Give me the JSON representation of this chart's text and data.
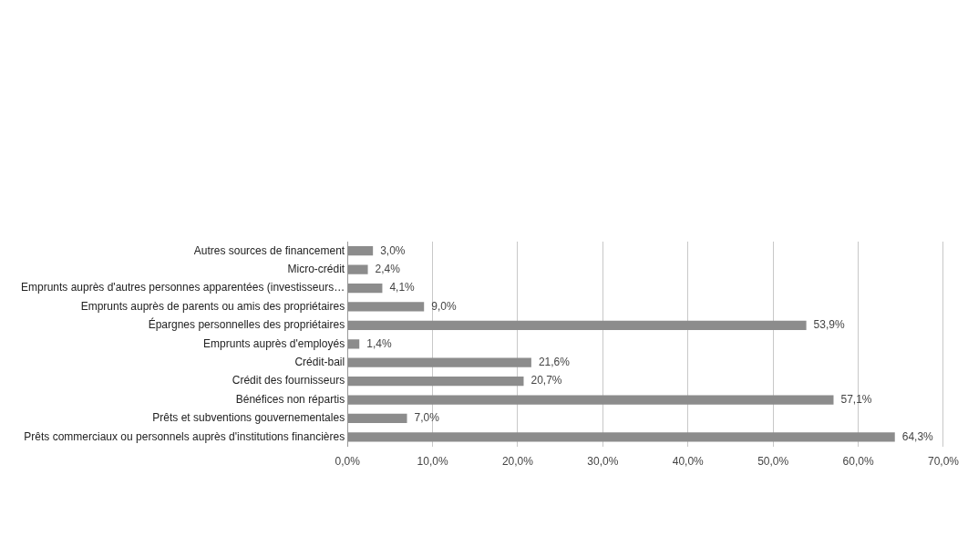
{
  "chart_data": {
    "type": "bar",
    "orientation": "horizontal",
    "categories": [
      "Autres sources de financement",
      "Micro-crédit",
      "Emprunts auprès d'autres personnes apparentées (investisseurs…",
      "Emprunts auprès de parents ou amis des propriétaires",
      "Épargnes personnelles des propriétaires",
      "Emprunts auprès d'employés",
      "Crédit-bail",
      "Crédit des fournisseurs",
      "Bénéfices non répartis",
      "Prêts et subventions gouvernementales",
      "Prêts commerciaux ou personnels auprès d'institutions financières"
    ],
    "values": [
      3.0,
      2.4,
      4.1,
      9.0,
      53.9,
      1.4,
      21.6,
      20.7,
      57.1,
      7.0,
      64.3
    ],
    "value_labels": [
      "3,0%",
      "2,4%",
      "4,1%",
      "9,0%",
      "53,9%",
      "1,4%",
      "21,6%",
      "20,7%",
      "57,1%",
      "7,0%",
      "64,3%"
    ],
    "color": "#8c8c8c",
    "xlim": [
      0,
      70
    ],
    "xticks": [
      {
        "value": 0,
        "label": "0,0%"
      },
      {
        "value": 10,
        "label": "10,0%"
      },
      {
        "value": 20,
        "label": "20,0%"
      },
      {
        "value": 30,
        "label": "30,0%"
      },
      {
        "value": 40,
        "label": "40,0%"
      },
      {
        "value": 50,
        "label": "50,0%"
      },
      {
        "value": 60,
        "label": "60,0%"
      },
      {
        "value": 70,
        "label": "70,0%"
      }
    ],
    "grid": "x",
    "legend": false
  }
}
